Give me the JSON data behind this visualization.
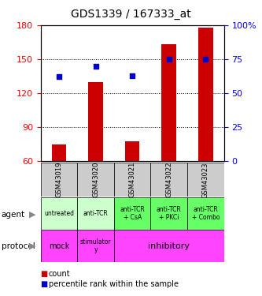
{
  "title": "GDS1339 / 167333_at",
  "samples": [
    "GSM43019",
    "GSM43020",
    "GSM43021",
    "GSM43022",
    "GSM43023"
  ],
  "counts": [
    75,
    130,
    78,
    163,
    178
  ],
  "percentiles": [
    62,
    70,
    63,
    75,
    75
  ],
  "ylim_left": [
    60,
    180
  ],
  "ylim_right": [
    0,
    100
  ],
  "yticks_left": [
    60,
    90,
    120,
    150,
    180
  ],
  "yticks_right": [
    0,
    25,
    50,
    75,
    100
  ],
  "ytick_right_labels": [
    "0",
    "25",
    "50",
    "75",
    "100%"
  ],
  "bar_color": "#cc0000",
  "dot_color": "#0000cc",
  "agent_labels": [
    "untreated",
    "anti-TCR",
    "anti-TCR\n+ CsA",
    "anti-TCR\n+ PKCi",
    "anti-TCR\n+ Combo"
  ],
  "agent_colors": [
    "#ccffcc",
    "#ccffcc",
    "#66ff66",
    "#66ff66",
    "#66ff66"
  ],
  "gsm_bg_color": "#cccccc",
  "legend_count_color": "#cc0000",
  "legend_pct_color": "#0000cc",
  "title_fontsize": 10,
  "tick_fontsize": 8,
  "label_fontsize": 7.5,
  "proto_color": "#ff44ff",
  "bar_width": 0.4
}
